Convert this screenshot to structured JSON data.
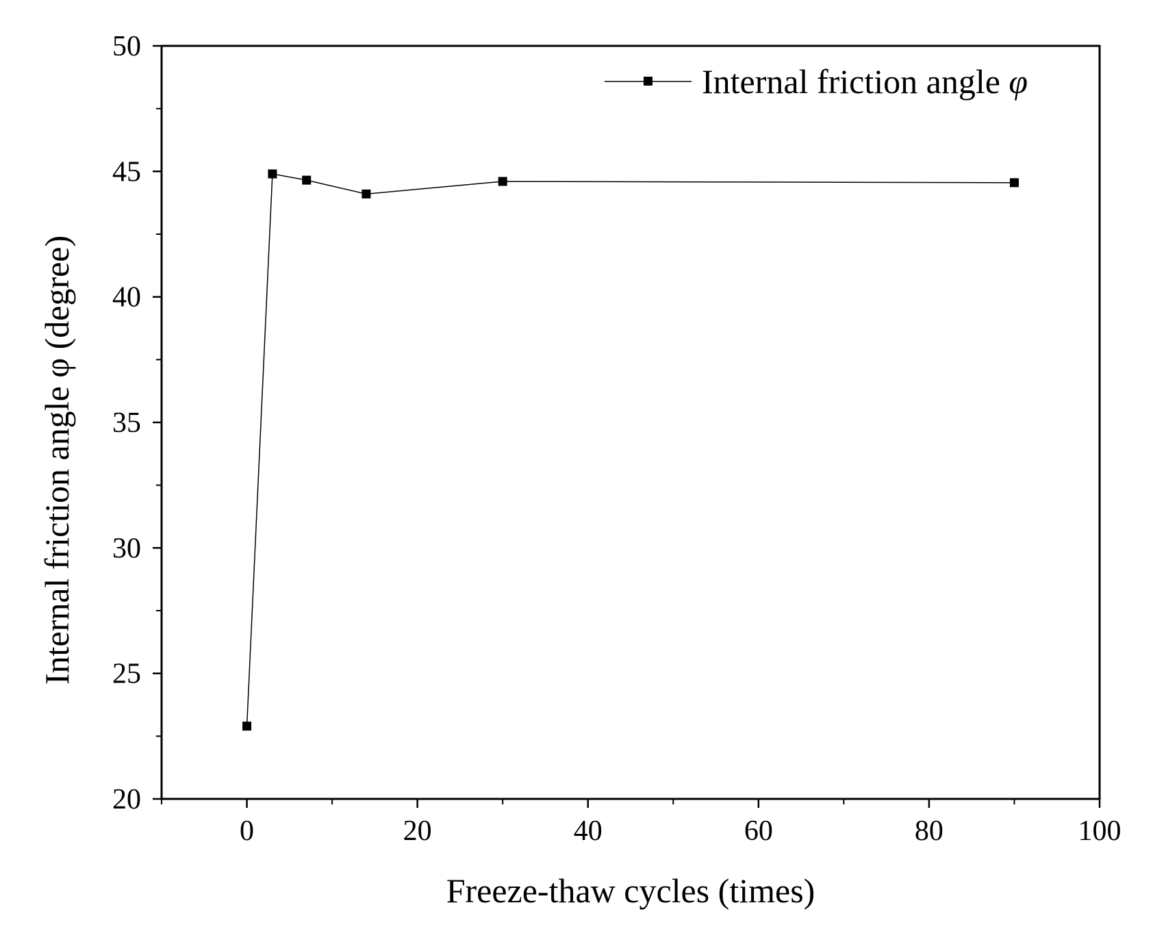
{
  "chart_data": {
    "type": "line",
    "xlabel": "Freeze-thaw cycles (times)",
    "ylabel": "Internal friction angle φ (degree)",
    "xlim": [
      -10,
      100
    ],
    "ylim": [
      20,
      50
    ],
    "x_ticks": [
      0,
      20,
      40,
      60,
      80,
      100
    ],
    "x_minor_ticks": [
      -10,
      10,
      30,
      50,
      70,
      90
    ],
    "y_ticks": [
      20,
      25,
      30,
      35,
      40,
      45,
      50
    ],
    "y_minor_ticks": [
      22.5,
      27.5,
      32.5,
      37.5,
      42.5,
      47.5
    ],
    "grid": false,
    "legend_position": "top-right",
    "series": [
      {
        "name": "Internal friction angle φ",
        "name_text": "Internal friction angle ",
        "name_symbol": "φ",
        "marker": "square",
        "color": "#000000",
        "x": [
          0,
          3,
          7,
          14,
          30,
          90
        ],
        "y": [
          22.9,
          44.9,
          44.65,
          44.1,
          44.6,
          44.55
        ]
      }
    ]
  }
}
